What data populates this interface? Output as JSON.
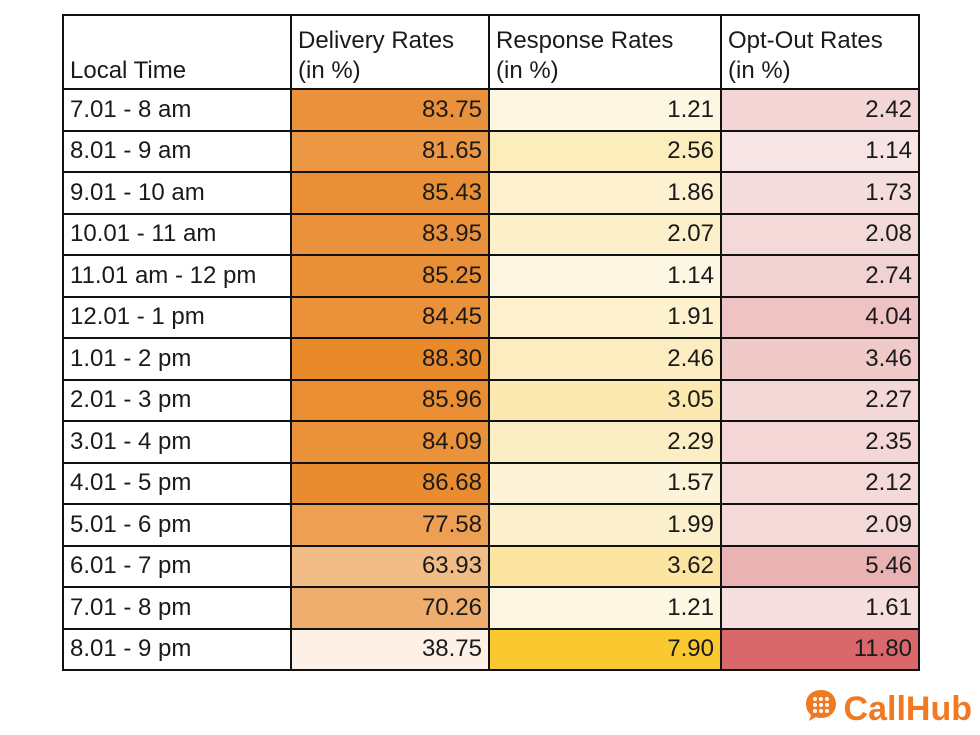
{
  "chart_data": {
    "type": "table",
    "columns": [
      "Local Time",
      "Delivery Rates\n(in %)",
      "Response Rates\n(in %)",
      "Opt-Out Rates\n(in %)"
    ],
    "rows": [
      [
        "7.01 - 8 am",
        "83.75",
        "1.21",
        "2.42"
      ],
      [
        "8.01 - 9 am",
        "81.65",
        "2.56",
        "1.14"
      ],
      [
        "9.01 - 10 am",
        "85.43",
        "1.86",
        "1.73"
      ],
      [
        "10.01 - 11 am",
        "83.95",
        "2.07",
        "2.08"
      ],
      [
        "11.01 am - 12 pm",
        "85.25",
        "1.14",
        "2.74"
      ],
      [
        "12.01 - 1 pm",
        "84.45",
        "1.91",
        "4.04"
      ],
      [
        "1.01 - 2 pm",
        "88.30",
        "2.46",
        "3.46"
      ],
      [
        "2.01 - 3 pm",
        "85.96",
        "3.05",
        "2.27"
      ],
      [
        "3.01 - 4 pm",
        "84.09",
        "2.29",
        "2.35"
      ],
      [
        "4.01 - 5 pm",
        "86.68",
        "1.57",
        "2.12"
      ],
      [
        "5.01 - 6 pm",
        "77.58",
        "1.99",
        "2.09"
      ],
      [
        "6.01 - 7 pm",
        "63.93",
        "3.62",
        "5.46"
      ],
      [
        "7.01 - 8 pm",
        "70.26",
        "1.21",
        "1.61"
      ],
      [
        "8.01 - 9 pm",
        "38.75",
        "7.90",
        "11.80"
      ]
    ],
    "heat_colors": {
      "delivery": {
        "low": "#fdf0e6",
        "high": "#e8892a"
      },
      "response": {
        "low": "#fdf6e3",
        "high": "#f9c92f"
      },
      "optout": {
        "low": "#f7e4e4",
        "high": "#d9686a"
      }
    }
  },
  "logo": {
    "text": "CallHub",
    "color": "#f07a22"
  }
}
